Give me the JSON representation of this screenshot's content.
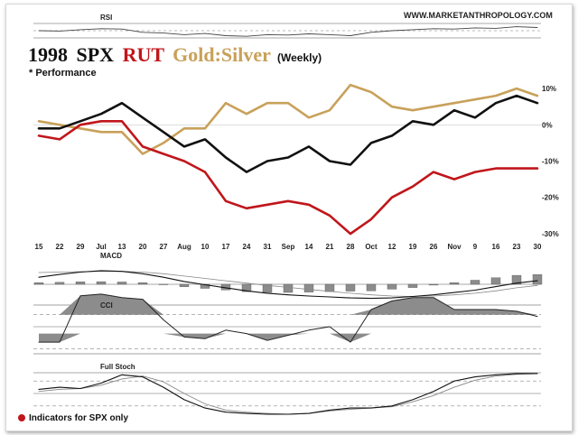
{
  "header": {
    "website": "WWW.MARKETANTHROPOLOGY.COM",
    "title_year": "1998",
    "title_spx": "SPX",
    "title_rut": "RUT",
    "title_gs": "Gold:Silver",
    "title_period": "(Weekly)",
    "subtitle": "* Performance",
    "footnote": "Indicators for SPX only"
  },
  "colors": {
    "spx": "#111111",
    "rut": "#c0161b",
    "gold_silver": "#c8a15a",
    "histogram": "#8c8c8c",
    "footnote_bullet": "#c0161b"
  },
  "chart_data": {
    "type": "line",
    "x": [
      "15",
      "22",
      "29",
      "Jul",
      "13",
      "20",
      "27",
      "Aug",
      "10",
      "17",
      "24",
      "31",
      "Sep",
      "14",
      "21",
      "28",
      "Oct",
      "12",
      "19",
      "26",
      "Nov",
      "9",
      "16",
      "23",
      "30"
    ],
    "ylim": [
      -32,
      14
    ],
    "yticks": [
      "10%",
      "0%",
      "-10%",
      "-20%",
      "-30%"
    ],
    "yticks_values": [
      10,
      0,
      -10,
      -20,
      -30
    ],
    "series": [
      {
        "name": "SPX",
        "values": [
          -1,
          -1,
          1,
          3,
          6,
          2,
          -2,
          -6,
          -4,
          -9,
          -13,
          -10,
          -9,
          -6,
          -10,
          -11,
          -5,
          -3,
          1,
          0,
          4,
          2,
          6,
          8,
          6
        ]
      },
      {
        "name": "RUT",
        "values": [
          -3,
          -4,
          0,
          1,
          1,
          -6,
          -8,
          -10,
          -13,
          -21,
          -23,
          -22,
          -21,
          -22,
          -25,
          -30,
          -26,
          -20,
          -17,
          -13,
          -15,
          -13,
          -12,
          -12,
          -12
        ]
      },
      {
        "name": "Gold:Silver",
        "values": [
          1,
          0,
          -1,
          -2,
          -2,
          -8,
          -5,
          -1,
          -1,
          6,
          3,
          6,
          6,
          2,
          4,
          11,
          9,
          5,
          4,
          5,
          6,
          7,
          8,
          10,
          8
        ]
      }
    ]
  },
  "indicators": {
    "rsi": {
      "label": "RSI",
      "values": [
        0.5,
        0.48,
        0.55,
        0.6,
        0.58,
        0.42,
        0.38,
        0.3,
        0.36,
        0.25,
        0.22,
        0.3,
        0.28,
        0.34,
        0.3,
        0.25,
        0.42,
        0.5,
        0.55,
        0.6,
        0.58,
        0.64,
        0.62,
        0.7,
        0.66
      ]
    },
    "macd": {
      "label": "MACD",
      "histogram": [
        0.1,
        0.12,
        0.15,
        0.16,
        0.14,
        0.1,
        0.0,
        -0.15,
        -0.25,
        -0.35,
        -0.45,
        -0.5,
        -0.5,
        -0.48,
        -0.45,
        -0.42,
        -0.4,
        -0.3,
        -0.2,
        -0.05,
        0.1,
        0.25,
        0.4,
        0.55,
        0.6
      ],
      "line": [
        0.3,
        0.42,
        0.52,
        0.58,
        0.55,
        0.45,
        0.3,
        0.12,
        -0.02,
        -0.15,
        -0.28,
        -0.38,
        -0.45,
        -0.5,
        -0.54,
        -0.58,
        -0.6,
        -0.58,
        -0.52,
        -0.45,
        -0.35,
        -0.25,
        -0.1,
        0.05,
        0.15
      ],
      "signal": [
        0.5,
        0.52,
        0.54,
        0.55,
        0.55,
        0.52,
        0.45,
        0.35,
        0.25,
        0.15,
        0.05,
        -0.05,
        -0.13,
        -0.22,
        -0.3,
        -0.38,
        -0.45,
        -0.5,
        -0.52,
        -0.5,
        -0.45,
        -0.38,
        -0.28,
        -0.15,
        -0.05
      ]
    },
    "cci": {
      "label": "CCI",
      "values": [
        -0.45,
        -0.45,
        0.9,
        0.95,
        0.85,
        0.8,
        0.2,
        -0.3,
        -0.35,
        -0.1,
        -0.2,
        -0.4,
        -0.25,
        -0.1,
        0.0,
        -0.45,
        0.5,
        0.75,
        0.85,
        0.85,
        0.5,
        0.5,
        0.5,
        0.45,
        0.3
      ]
    },
    "stoch": {
      "label": "Full Stoch",
      "k": [
        0.6,
        0.65,
        0.62,
        0.75,
        0.95,
        0.9,
        0.65,
        0.35,
        0.15,
        0.05,
        0.02,
        0.0,
        0.0,
        0.02,
        0.1,
        0.15,
        0.15,
        0.2,
        0.35,
        0.55,
        0.8,
        0.9,
        0.95,
        0.98,
        0.98
      ],
      "d": [
        0.55,
        0.6,
        0.62,
        0.7,
        0.85,
        0.92,
        0.78,
        0.5,
        0.25,
        0.1,
        0.05,
        0.02,
        0.0,
        0.02,
        0.08,
        0.12,
        0.15,
        0.18,
        0.3,
        0.45,
        0.65,
        0.82,
        0.92,
        0.96,
        0.98
      ]
    }
  }
}
